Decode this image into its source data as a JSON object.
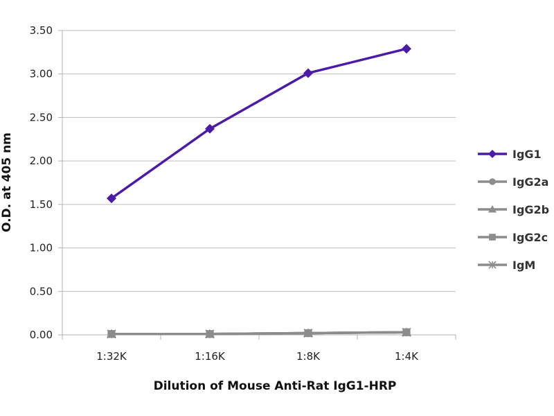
{
  "chart_data": {
    "type": "line",
    "xlabel": "Dilution of Mouse Anti-Rat IgG1-HRP",
    "ylabel": "O.D. at 405 nm",
    "categories": [
      "1:32K",
      "1:16K",
      "1:8K",
      "1:4K"
    ],
    "ylim": [
      0,
      3.5
    ],
    "yticks": [
      "0.00",
      "0.50",
      "1.00",
      "1.50",
      "2.00",
      "2.50",
      "3.00",
      "3.50"
    ],
    "grid": "horizontal",
    "legend_position": "right",
    "series": [
      {
        "name": "IgG1",
        "values": [
          1.57,
          2.37,
          3.01,
          3.29
        ],
        "color": "#4b1ba8",
        "marker": "diamond"
      },
      {
        "name": "IgG2a",
        "values": [
          0.01,
          0.01,
          0.02,
          0.03
        ],
        "color": "#8c8c8c",
        "marker": "circle"
      },
      {
        "name": "IgG2b",
        "values": [
          0.01,
          0.01,
          0.02,
          0.03
        ],
        "color": "#8c8c8c",
        "marker": "triangle"
      },
      {
        "name": "IgG2c",
        "values": [
          0.01,
          0.01,
          0.02,
          0.03
        ],
        "color": "#8c8c8c",
        "marker": "square"
      },
      {
        "name": "IgM",
        "values": [
          0.01,
          0.01,
          0.02,
          0.03
        ],
        "color": "#8c8c8c",
        "marker": "asterisk"
      }
    ]
  }
}
